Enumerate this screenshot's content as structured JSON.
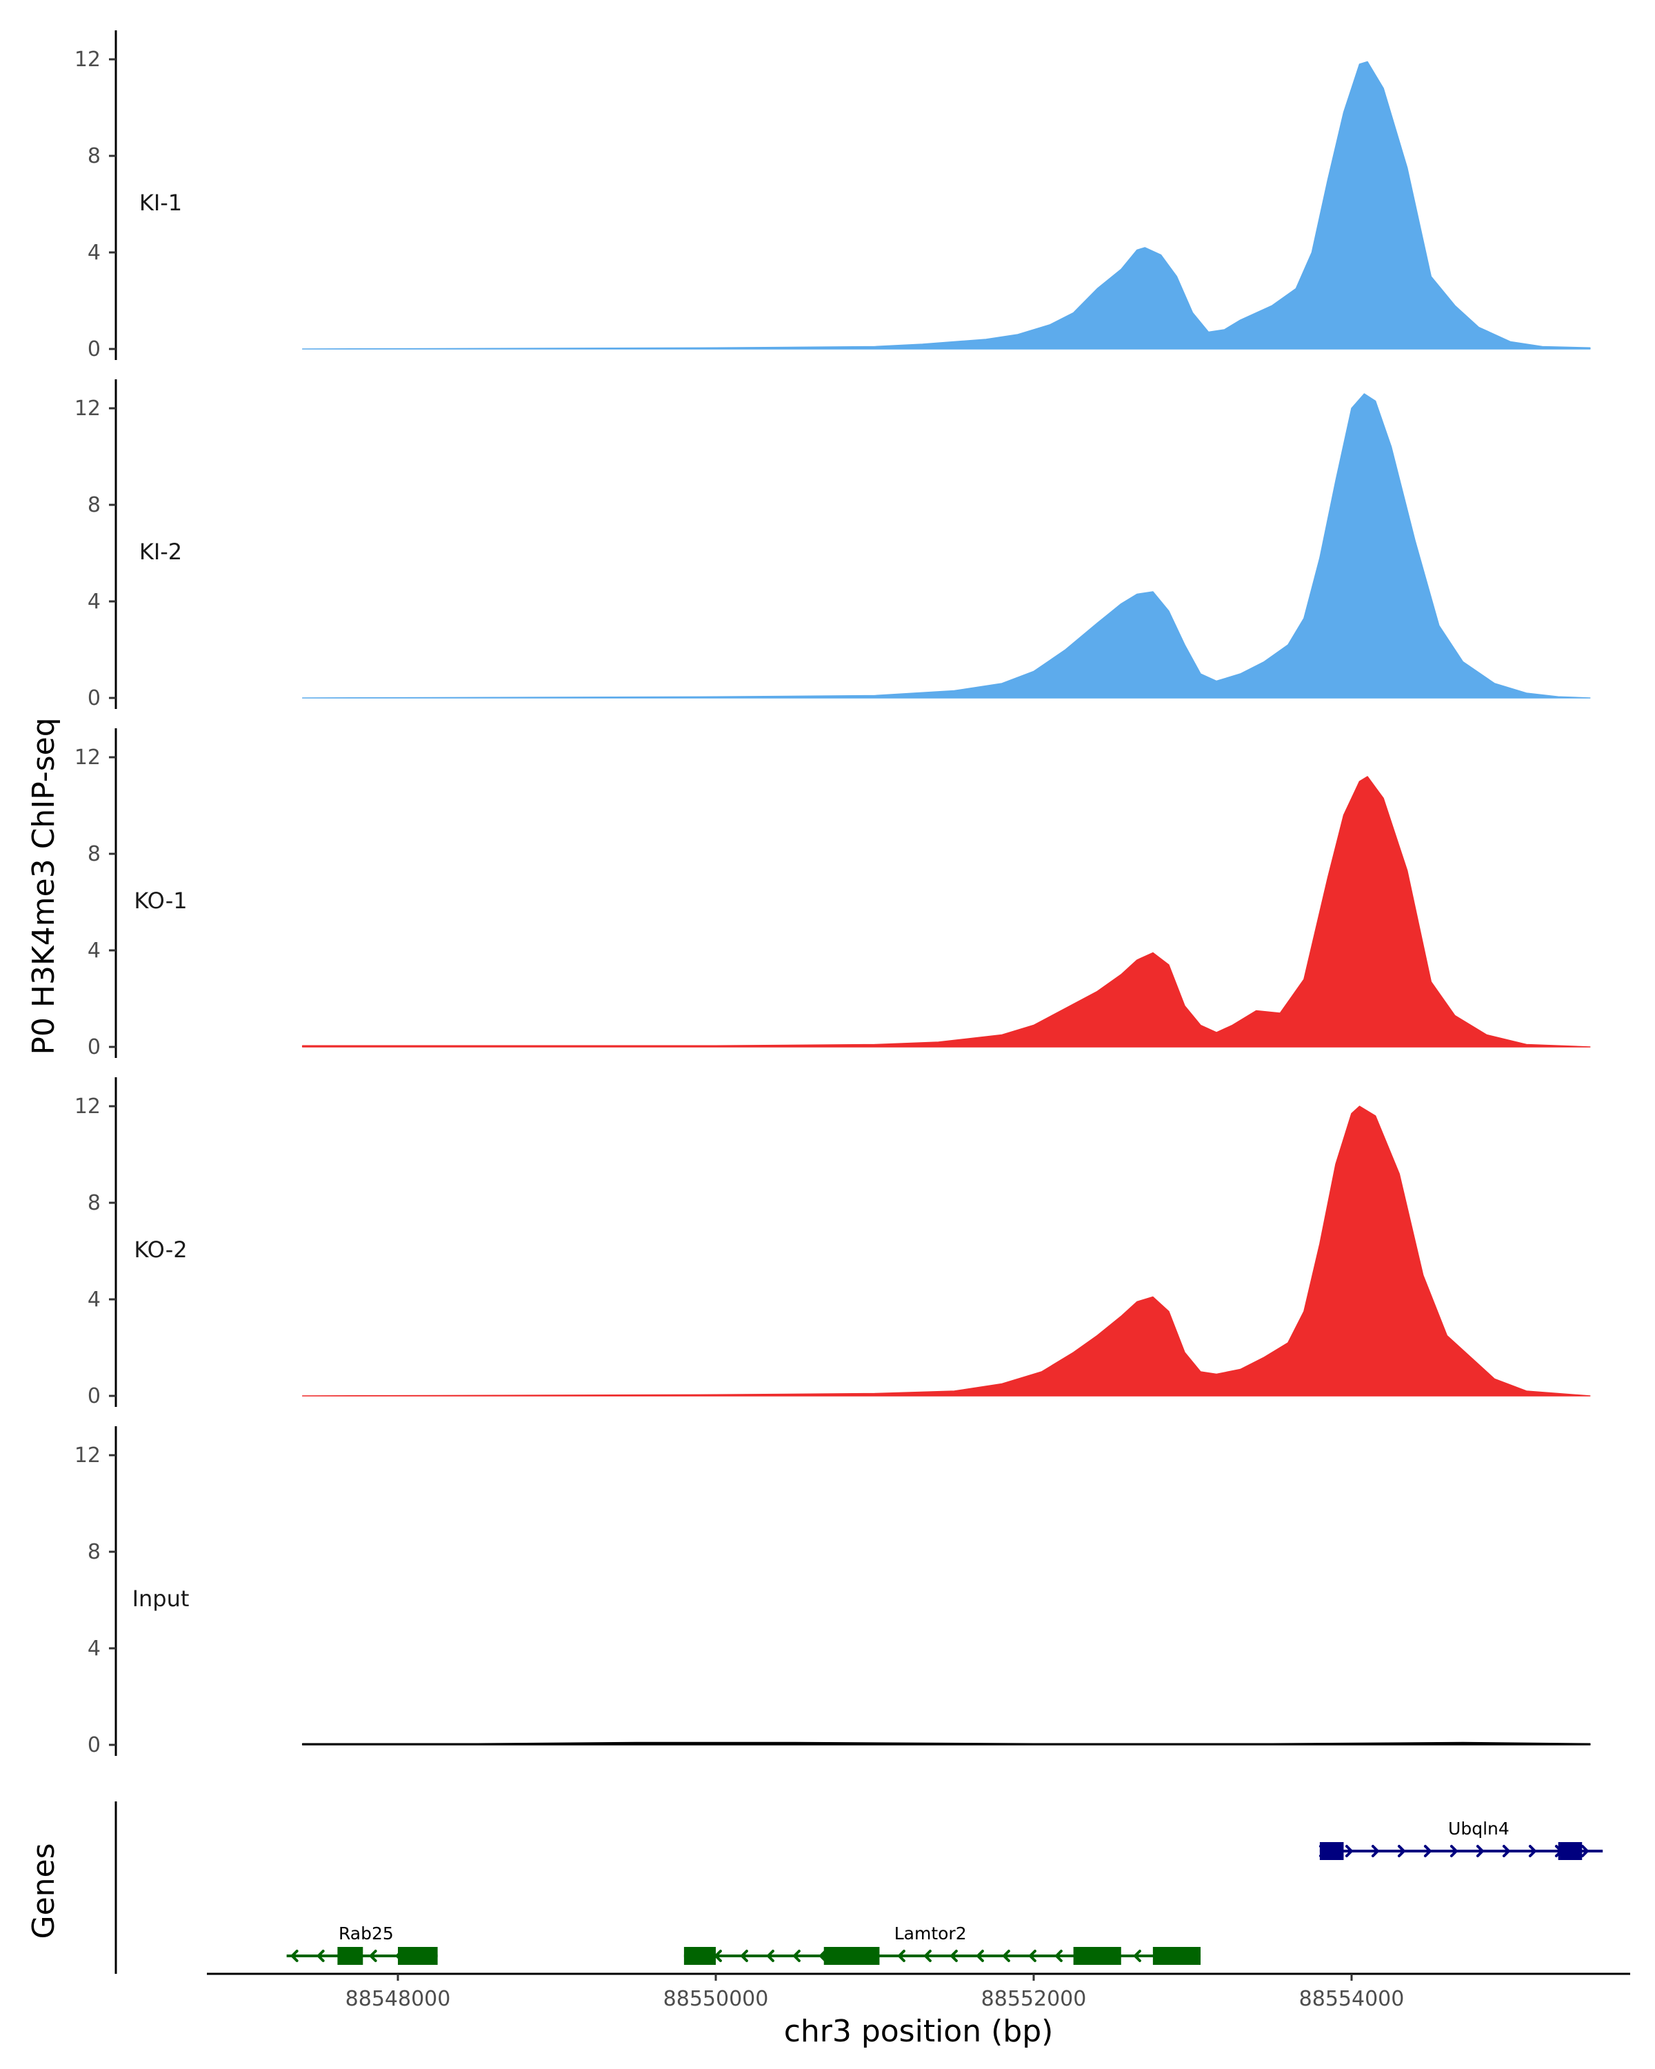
{
  "chart_data": {
    "type": "area",
    "title": "",
    "ylabel": "P0 H3K4me3 ChIP-seq",
    "xlabel": "chr3 position (bp)",
    "genes_panel_label": "Genes",
    "ylim": [
      0,
      13
    ],
    "yticks": [
      0,
      4,
      8,
      12
    ],
    "xlim": [
      88547000,
      88556000
    ],
    "xticks": [
      88548000,
      88550000,
      88552000,
      88554000
    ],
    "xtick_labels": [
      "88548000",
      "88550000",
      "88552000",
      "88554000"
    ],
    "signal_range": [
      88547400,
      88555500
    ],
    "tracks": [
      {
        "name": "KI-1",
        "color": "#5dabec",
        "points": [
          [
            88547400,
            0
          ],
          [
            88550000,
            0.05
          ],
          [
            88551000,
            0.1
          ],
          [
            88551300,
            0.2
          ],
          [
            88551700,
            0.4
          ],
          [
            88551900,
            0.6
          ],
          [
            88552100,
            1.0
          ],
          [
            88552250,
            1.5
          ],
          [
            88552400,
            2.5
          ],
          [
            88552550,
            3.3
          ],
          [
            88552650,
            4.1
          ],
          [
            88552700,
            4.2
          ],
          [
            88552800,
            3.9
          ],
          [
            88552900,
            3.0
          ],
          [
            88553000,
            1.5
          ],
          [
            88553100,
            0.7
          ],
          [
            88553200,
            0.8
          ],
          [
            88553300,
            1.2
          ],
          [
            88553500,
            1.8
          ],
          [
            88553650,
            2.5
          ],
          [
            88553750,
            4.0
          ],
          [
            88553850,
            7.0
          ],
          [
            88553950,
            9.8
          ],
          [
            88554050,
            11.8
          ],
          [
            88554100,
            11.9
          ],
          [
            88554200,
            10.8
          ],
          [
            88554350,
            7.5
          ],
          [
            88554500,
            3.0
          ],
          [
            88554650,
            1.8
          ],
          [
            88554800,
            0.9
          ],
          [
            88555000,
            0.3
          ],
          [
            88555200,
            0.1
          ],
          [
            88555500,
            0.05
          ]
        ]
      },
      {
        "name": "KI-2",
        "color": "#5dabec",
        "points": [
          [
            88547400,
            0
          ],
          [
            88550000,
            0.05
          ],
          [
            88551000,
            0.1
          ],
          [
            88551500,
            0.3
          ],
          [
            88551800,
            0.6
          ],
          [
            88552000,
            1.1
          ],
          [
            88552200,
            2.0
          ],
          [
            88552400,
            3.1
          ],
          [
            88552550,
            3.9
          ],
          [
            88552650,
            4.3
          ],
          [
            88552750,
            4.4
          ],
          [
            88552850,
            3.6
          ],
          [
            88552950,
            2.2
          ],
          [
            88553050,
            1.0
          ],
          [
            88553150,
            0.7
          ],
          [
            88553300,
            1.0
          ],
          [
            88553450,
            1.5
          ],
          [
            88553600,
            2.2
          ],
          [
            88553700,
            3.3
          ],
          [
            88553800,
            5.8
          ],
          [
            88553900,
            9.0
          ],
          [
            88554000,
            12.0
          ],
          [
            88554080,
            12.6
          ],
          [
            88554150,
            12.3
          ],
          [
            88554250,
            10.4
          ],
          [
            88554400,
            6.5
          ],
          [
            88554550,
            3.0
          ],
          [
            88554700,
            1.5
          ],
          [
            88554900,
            0.6
          ],
          [
            88555100,
            0.2
          ],
          [
            88555300,
            0.05
          ],
          [
            88555500,
            0
          ]
        ]
      },
      {
        "name": "KO-1",
        "color": "#ee2c2c",
        "points": [
          [
            88547400,
            0.05
          ],
          [
            88550000,
            0.05
          ],
          [
            88551000,
            0.1
          ],
          [
            88551400,
            0.2
          ],
          [
            88551800,
            0.5
          ],
          [
            88552000,
            0.9
          ],
          [
            88552200,
            1.6
          ],
          [
            88552400,
            2.3
          ],
          [
            88552550,
            3.0
          ],
          [
            88552650,
            3.6
          ],
          [
            88552750,
            3.9
          ],
          [
            88552850,
            3.4
          ],
          [
            88552950,
            1.7
          ],
          [
            88553050,
            0.9
          ],
          [
            88553150,
            0.6
          ],
          [
            88553250,
            0.9
          ],
          [
            88553400,
            1.5
          ],
          [
            88553550,
            1.4
          ],
          [
            88553700,
            2.8
          ],
          [
            88553850,
            7.0
          ],
          [
            88553950,
            9.6
          ],
          [
            88554050,
            11.0
          ],
          [
            88554100,
            11.2
          ],
          [
            88554200,
            10.3
          ],
          [
            88554350,
            7.3
          ],
          [
            88554500,
            2.7
          ],
          [
            88554650,
            1.3
          ],
          [
            88554850,
            0.5
          ],
          [
            88555100,
            0.1
          ],
          [
            88555500,
            0
          ]
        ]
      },
      {
        "name": "KO-2",
        "color": "#ee2c2c",
        "points": [
          [
            88547400,
            0
          ],
          [
            88550000,
            0.05
          ],
          [
            88551000,
            0.1
          ],
          [
            88551500,
            0.2
          ],
          [
            88551800,
            0.5
          ],
          [
            88552050,
            1.0
          ],
          [
            88552250,
            1.8
          ],
          [
            88552400,
            2.5
          ],
          [
            88552550,
            3.3
          ],
          [
            88552650,
            3.9
          ],
          [
            88552750,
            4.1
          ],
          [
            88552850,
            3.5
          ],
          [
            88552950,
            1.8
          ],
          [
            88553050,
            1.0
          ],
          [
            88553150,
            0.9
          ],
          [
            88553300,
            1.1
          ],
          [
            88553450,
            1.6
          ],
          [
            88553600,
            2.2
          ],
          [
            88553700,
            3.5
          ],
          [
            88553800,
            6.3
          ],
          [
            88553900,
            9.6
          ],
          [
            88554000,
            11.7
          ],
          [
            88554050,
            12.0
          ],
          [
            88554150,
            11.6
          ],
          [
            88554300,
            9.2
          ],
          [
            88554450,
            5.0
          ],
          [
            88554600,
            2.5
          ],
          [
            88554750,
            1.6
          ],
          [
            88554900,
            0.7
          ],
          [
            88555100,
            0.2
          ],
          [
            88555500,
            0
          ]
        ]
      },
      {
        "name": "Input",
        "color": "#000000",
        "points": [
          [
            88547400,
            0.05
          ],
          [
            88548500,
            0.05
          ],
          [
            88549500,
            0.1
          ],
          [
            88550500,
            0.1
          ],
          [
            88552000,
            0.05
          ],
          [
            88553500,
            0.05
          ],
          [
            88554700,
            0.1
          ],
          [
            88555500,
            0.05
          ]
        ]
      }
    ],
    "genes": [
      {
        "name": "Rab25",
        "strand": "-",
        "row": 2,
        "color": "#006400",
        "start": 88547300,
        "end": 88548250,
        "exons": [
          [
            88547620,
            88547780
          ],
          [
            88548000,
            88548250
          ]
        ],
        "label_pos": 88547800
      },
      {
        "name": "Lamtor2",
        "strand": "-",
        "row": 2,
        "color": "#006400",
        "start": 88549800,
        "end": 88553050,
        "exons": [
          [
            88549800,
            88550000
          ],
          [
            88550680,
            88551030
          ],
          [
            88552250,
            88552550
          ],
          [
            88552750,
            88553050
          ]
        ],
        "label_pos": 88551350
      },
      {
        "name": "Ubqln4",
        "strand": "+",
        "row": 1,
        "color": "#00007f",
        "start": 88553800,
        "end": 88555580,
        "exons": [
          [
            88553800,
            88553950
          ],
          [
            88555300,
            88555450
          ]
        ],
        "label_pos": 88554800
      }
    ]
  }
}
